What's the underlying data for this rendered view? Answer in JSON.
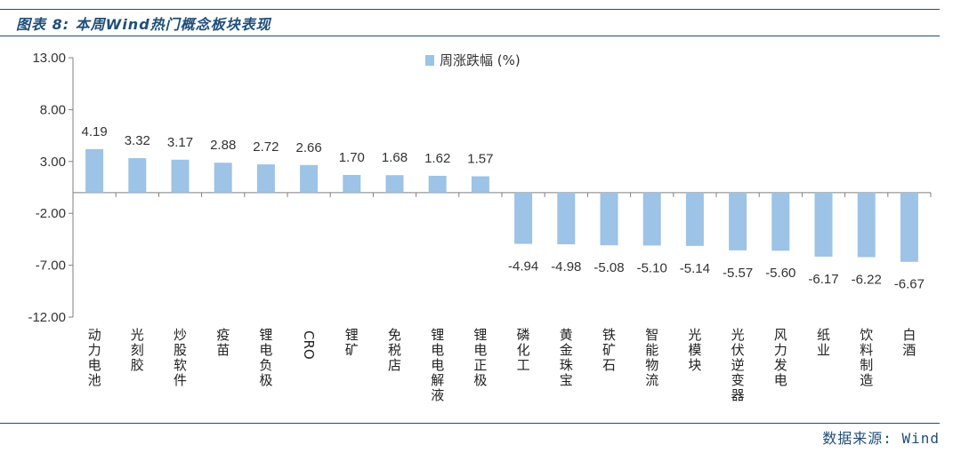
{
  "figure": {
    "title": "图表 8:  本周Wind热门概念板块表现",
    "source": "数据来源: Wind"
  },
  "colors": {
    "bar": "#9dc3e6",
    "axis": "#7f7f7f",
    "title": "#1f4e79"
  },
  "chart_data": {
    "type": "bar",
    "title": "",
    "xlabel": "",
    "ylabel": "",
    "ylim": [
      -12,
      13
    ],
    "yticks": [
      "13.00",
      "8.00",
      "3.00",
      "-2.00",
      "-7.00",
      "-12.00"
    ],
    "ytick_values": [
      13,
      8,
      3,
      -2,
      -7,
      -12
    ],
    "legend_position": "top-center",
    "categories": [
      "动力电池",
      "光刻胶",
      "炒股软件",
      "疫苗",
      "锂电负极",
      "CRO",
      "锂矿",
      "免税店",
      "锂电电解液",
      "锂电正极",
      "磷化工",
      "黄金珠宝",
      "铁矿石",
      "智能物流",
      "光模块",
      "光伏逆变器",
      "风力发电",
      "纸业",
      "饮料制造",
      "白酒"
    ],
    "series": [
      {
        "name": "周涨跌幅 (%)",
        "values": [
          4.19,
          3.32,
          3.17,
          2.88,
          2.72,
          2.66,
          1.7,
          1.68,
          1.62,
          1.57,
          -4.94,
          -4.98,
          -5.08,
          -5.1,
          -5.14,
          -5.57,
          -5.6,
          -6.17,
          -6.22,
          -6.67
        ],
        "labels": [
          "4.19",
          "3.32",
          "3.17",
          "2.88",
          "2.72",
          "2.66",
          "1.70",
          "1.68",
          "1.62",
          "1.57",
          "-4.94",
          "-4.98",
          "-5.08",
          "-5.10",
          "-5.14",
          "-5.57",
          "-5.60",
          "-6.17",
          "-6.22",
          "-6.67"
        ]
      }
    ],
    "grid": false
  }
}
